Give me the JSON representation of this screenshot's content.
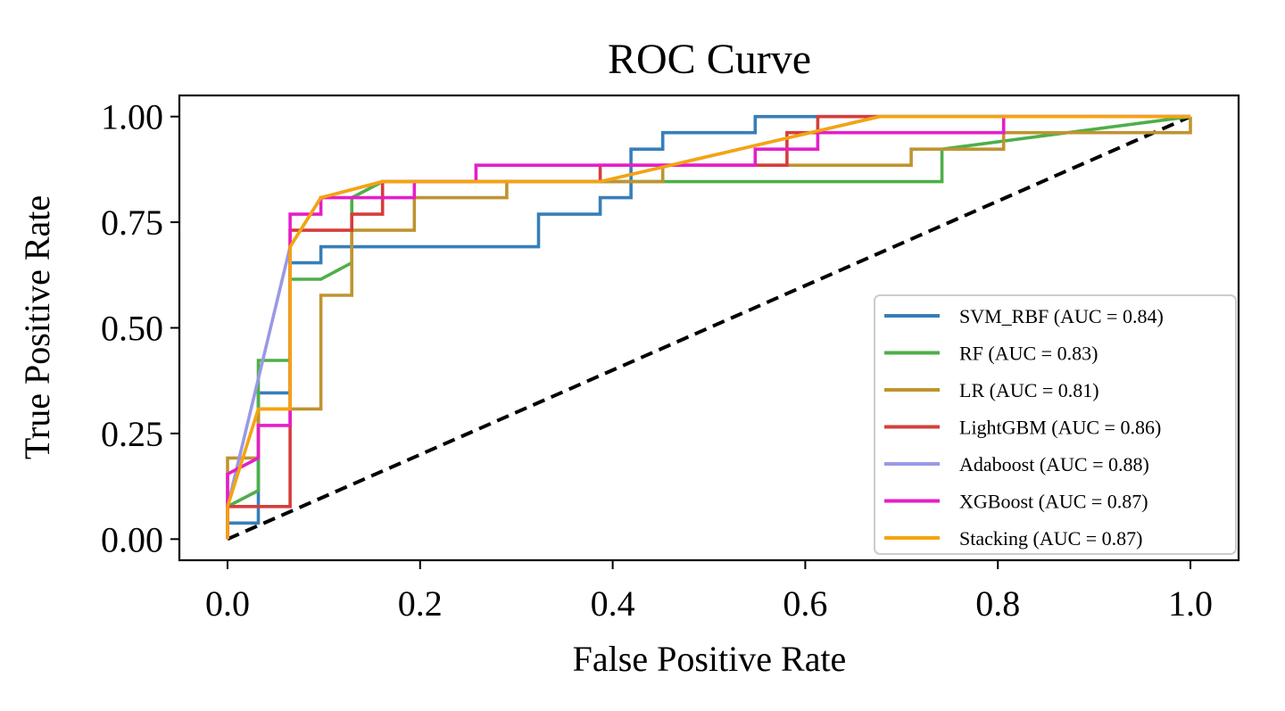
{
  "chart_data": {
    "type": "line",
    "title": "ROC Curve",
    "xlabel": "False Positive Rate",
    "ylabel": "True Positive Rate",
    "xlim": [
      -0.05,
      1.05
    ],
    "ylim": [
      -0.05,
      1.05
    ],
    "xticks": [
      0.0,
      0.2,
      0.4,
      0.6,
      0.8,
      1.0
    ],
    "xtick_labels": [
      "0.0",
      "0.2",
      "0.4",
      "0.6",
      "0.8",
      "1.0"
    ],
    "yticks": [
      0.0,
      0.25,
      0.5,
      0.75,
      1.0
    ],
    "ytick_labels": [
      "0.00",
      "0.25",
      "0.50",
      "0.75",
      "1.00"
    ],
    "grid": false,
    "legend_position": "lower-right",
    "diagonal": {
      "x": [
        0,
        1
      ],
      "y": [
        0,
        1
      ],
      "color": "#000000",
      "style": "dashed"
    },
    "series": [
      {
        "name": "SVM_RBF (AUC = 0.84)",
        "color": "#377eb8",
        "x": [
          0,
          0,
          0.032,
          0.032,
          0.065,
          0.065,
          0.097,
          0.097,
          0.323,
          0.323,
          0.387,
          0.387,
          0.419,
          0.419,
          0.452,
          0.452,
          0.548,
          0.548,
          1.0
        ],
        "y": [
          0,
          0.038,
          0.038,
          0.346,
          0.346,
          0.654,
          0.654,
          0.692,
          0.692,
          0.769,
          0.769,
          0.808,
          0.808,
          0.923,
          0.923,
          0.962,
          0.962,
          1.0,
          1.0
        ]
      },
      {
        "name": "RF (AUC = 0.83)",
        "color": "#4daf4a",
        "x": [
          0,
          0,
          0.032,
          0.032,
          0.065,
          0.065,
          0.097,
          0.129,
          0.129,
          0.161,
          0.194,
          0.452,
          0.452,
          0.742,
          0.742,
          1.0
        ],
        "y": [
          0,
          0.077,
          0.115,
          0.423,
          0.423,
          0.615,
          0.615,
          0.654,
          0.808,
          0.846,
          0.846,
          0.846,
          0.846,
          0.846,
          0.923,
          1.0
        ]
      },
      {
        "name": "LR (AUC = 0.81)",
        "color": "#bf9430",
        "x": [
          0,
          0,
          0.032,
          0.032,
          0.065,
          0.065,
          0.097,
          0.097,
          0.129,
          0.129,
          0.194,
          0.194,
          0.29,
          0.29,
          0.452,
          0.452,
          0.71,
          0.71,
          0.806,
          0.806,
          1.0,
          1.0
        ],
        "y": [
          0,
          0.192,
          0.192,
          0.308,
          0.308,
          0.308,
          0.308,
          0.577,
          0.577,
          0.731,
          0.731,
          0.808,
          0.808,
          0.846,
          0.846,
          0.885,
          0.885,
          0.923,
          0.923,
          0.962,
          0.962,
          1.0
        ]
      },
      {
        "name": "LightGBM (AUC = 0.86)",
        "color": "#d63d3b",
        "x": [
          0,
          0,
          0.065,
          0.065,
          0.129,
          0.129,
          0.161,
          0.161,
          0.387,
          0.387,
          0.581,
          0.581,
          0.613,
          0.613,
          1.0
        ],
        "y": [
          0,
          0.077,
          0.077,
          0.731,
          0.731,
          0.769,
          0.769,
          0.846,
          0.846,
          0.885,
          0.885,
          0.962,
          0.962,
          1.0,
          1.0
        ]
      },
      {
        "name": "Adaboost (AUC = 0.88)",
        "color": "#9999e6",
        "x": [
          0,
          0,
          0.065,
          0.097,
          0.161,
          0.387,
          0.677,
          1.0
        ],
        "y": [
          0,
          0.077,
          0.692,
          0.808,
          0.846,
          0.846,
          1.0,
          1.0
        ]
      },
      {
        "name": "XGBoost (AUC = 0.87)",
        "color": "#e61ec8",
        "x": [
          0,
          0,
          0.032,
          0.032,
          0.065,
          0.065,
          0.097,
          0.097,
          0.194,
          0.194,
          0.258,
          0.258,
          0.548,
          0.548,
          0.613,
          0.613,
          0.806,
          0.806,
          1.0
        ],
        "y": [
          0,
          0.154,
          0.192,
          0.269,
          0.269,
          0.769,
          0.769,
          0.808,
          0.808,
          0.846,
          0.846,
          0.885,
          0.885,
          0.923,
          0.923,
          0.962,
          0.962,
          1.0,
          1.0
        ]
      },
      {
        "name": "Stacking (AUC = 0.87)",
        "color": "#f5a40c",
        "x": [
          0,
          0,
          0.032,
          0.065,
          0.065,
          0.097,
          0.161,
          0.387,
          0.677,
          1.0
        ],
        "y": [
          0,
          0.077,
          0.308,
          0.308,
          0.692,
          0.808,
          0.846,
          0.846,
          1.0,
          1.0
        ]
      }
    ]
  }
}
